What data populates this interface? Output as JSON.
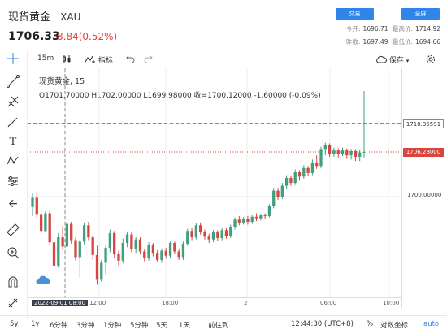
{
  "header": {
    "name": "现货黄金",
    "symbol": "XAU",
    "price": "1706.33",
    "change": "8.84(0.52%)",
    "btn_trade": "交易",
    "btn_fullscreen": "全屏",
    "stats": {
      "open_label": "今开:",
      "open": "1696.71",
      "high_label": "最高价:",
      "high": "1714.92",
      "prev_label": "昨收:",
      "prev": "1697.49",
      "low_label": "最低价:",
      "low": "1694.66"
    }
  },
  "toolbar": {
    "interval": "15m",
    "indicators": "指标",
    "save": "保存"
  },
  "legend": {
    "line1": "现货黄金, 15",
    "line2": "O1701.70000  H1702.00000  L1699.98000  收=1700.12000  -1.60000 (-0.09%)"
  },
  "price_axis": {
    "tag_top": "1710.35591",
    "tag_current": "1706.28000",
    "label_1700": "1700.00000"
  },
  "time_axis": {
    "date_tag": "2022-09-01  08:00",
    "t1": "12:00",
    "t2": "18:00",
    "t3": "2",
    "t4": "06:00",
    "t5": "10:00"
  },
  "bottom": {
    "ranges": [
      "5y",
      "1y",
      "6分钟",
      "3分钟",
      "1分钟",
      "5分钟",
      "5天",
      "1天"
    ],
    "goto": "前往到...",
    "clock": "12:44:30 (UTC+8)",
    "percent": "%",
    "log": "对数坐标",
    "auto": "auto"
  },
  "colors": {
    "up": "#3f9f7f",
    "down": "#d9453f",
    "accent": "#2f86e8"
  },
  "chart_data": {
    "type": "candlestick",
    "interval": "15m",
    "last_price": 1706.28,
    "crosshair_price": 1710.35591,
    "ytick": 1700.0,
    "candles": [
      [
        1698.5,
        1700.5,
        1697.2,
        1699.8
      ],
      [
        1699.8,
        1700.6,
        1697.0,
        1697.5
      ],
      [
        1697.5,
        1698.2,
        1694.8,
        1695.1
      ],
      [
        1695.1,
        1697.9,
        1694.9,
        1697.6
      ],
      [
        1697.6,
        1698.0,
        1693.0,
        1693.5
      ],
      [
        1693.5,
        1694.2,
        1689.5,
        1690.2
      ],
      [
        1690.2,
        1694.8,
        1689.9,
        1694.2
      ],
      [
        1694.2,
        1695.8,
        1692.4,
        1692.9
      ],
      [
        1692.9,
        1696.6,
        1692.5,
        1696.1
      ],
      [
        1696.1,
        1696.4,
        1693.3,
        1693.8
      ],
      [
        1693.8,
        1694.2,
        1690.9,
        1691.4
      ],
      [
        1691.4,
        1693.9,
        1688.5,
        1693.6
      ],
      [
        1693.6,
        1696.3,
        1693.2,
        1695.9
      ],
      [
        1695.9,
        1696.4,
        1693.8,
        1694.2
      ],
      [
        1694.2,
        1694.5,
        1691.0,
        1691.7
      ],
      [
        1691.7,
        1693.0,
        1687.5,
        1688.3
      ],
      [
        1688.3,
        1691.0,
        1687.9,
        1690.6
      ],
      [
        1690.6,
        1693.2,
        1689.0,
        1692.7
      ],
      [
        1692.7,
        1695.3,
        1692.1,
        1694.8
      ],
      [
        1694.8,
        1695.1,
        1691.3,
        1691.9
      ],
      [
        1691.9,
        1692.3,
        1690.2,
        1690.9
      ],
      [
        1690.9,
        1694.0,
        1690.5,
        1693.4
      ],
      [
        1693.4,
        1695.0,
        1692.8,
        1694.6
      ],
      [
        1694.6,
        1695.0,
        1692.1,
        1692.5
      ],
      [
        1692.5,
        1694.2,
        1692.0,
        1693.9
      ],
      [
        1693.9,
        1694.2,
        1691.8,
        1692.2
      ],
      [
        1692.2,
        1692.6,
        1690.8,
        1691.3
      ],
      [
        1691.3,
        1693.5,
        1690.9,
        1693.1
      ],
      [
        1693.1,
        1693.4,
        1691.5,
        1692.0
      ],
      [
        1692.0,
        1692.4,
        1690.7,
        1691.0
      ],
      [
        1691.0,
        1692.6,
        1690.6,
        1692.3
      ],
      [
        1692.3,
        1692.7,
        1691.2,
        1691.6
      ],
      [
        1691.6,
        1693.7,
        1691.2,
        1693.4
      ],
      [
        1693.4,
        1693.6,
        1691.9,
        1692.2
      ],
      [
        1692.2,
        1692.5,
        1691.0,
        1691.4
      ],
      [
        1691.4,
        1693.6,
        1691.0,
        1693.3
      ],
      [
        1693.3,
        1695.4,
        1693.0,
        1695.1
      ],
      [
        1695.1,
        1695.6,
        1693.8,
        1694.2
      ],
      [
        1694.2,
        1696.2,
        1693.9,
        1695.9
      ],
      [
        1695.9,
        1696.3,
        1694.6,
        1695.0
      ],
      [
        1695.0,
        1695.3,
        1693.9,
        1694.3
      ],
      [
        1694.3,
        1694.7,
        1693.4,
        1693.9
      ],
      [
        1693.9,
        1695.2,
        1693.5,
        1694.9
      ],
      [
        1694.9,
        1695.2,
        1693.7,
        1694.1
      ],
      [
        1694.1,
        1695.5,
        1693.8,
        1695.2
      ],
      [
        1695.2,
        1695.5,
        1694.0,
        1694.4
      ],
      [
        1694.4,
        1696.0,
        1694.1,
        1695.7
      ],
      [
        1695.7,
        1697.0,
        1695.3,
        1696.7
      ],
      [
        1696.7,
        1697.2,
        1695.9,
        1696.3
      ],
      [
        1696.3,
        1697.1,
        1696.0,
        1696.8
      ],
      [
        1696.8,
        1697.2,
        1696.0,
        1696.4
      ],
      [
        1696.4,
        1697.4,
        1696.1,
        1697.1
      ],
      [
        1697.1,
        1697.6,
        1696.5,
        1696.9
      ],
      [
        1696.9,
        1697.5,
        1696.6,
        1697.3
      ],
      [
        1697.3,
        1697.6,
        1696.8,
        1697.2
      ],
      [
        1697.2,
        1698.9,
        1697.0,
        1698.6
      ],
      [
        1698.6,
        1701.2,
        1698.3,
        1700.8
      ],
      [
        1700.8,
        1701.2,
        1699.5,
        1699.9
      ],
      [
        1699.9,
        1701.9,
        1699.6,
        1701.5
      ],
      [
        1701.5,
        1703.0,
        1701.1,
        1702.6
      ],
      [
        1702.6,
        1702.9,
        1701.5,
        1701.9
      ],
      [
        1701.9,
        1703.8,
        1701.6,
        1703.4
      ],
      [
        1703.4,
        1703.7,
        1702.2,
        1702.8
      ],
      [
        1702.8,
        1704.4,
        1702.5,
        1704.0
      ],
      [
        1704.0,
        1704.3,
        1702.9,
        1703.3
      ],
      [
        1703.3,
        1705.2,
        1703.0,
        1704.8
      ],
      [
        1704.8,
        1705.8,
        1703.9,
        1704.3
      ],
      [
        1704.3,
        1707.0,
        1704.0,
        1706.7
      ],
      [
        1706.7,
        1707.6,
        1705.8,
        1707.2
      ],
      [
        1707.2,
        1707.5,
        1705.6,
        1706.0
      ],
      [
        1706.0,
        1706.9,
        1705.6,
        1706.5
      ],
      [
        1706.5,
        1706.8,
        1705.5,
        1706.0
      ],
      [
        1706.0,
        1706.9,
        1705.7,
        1706.5
      ],
      [
        1706.5,
        1706.8,
        1705.3,
        1705.8
      ],
      [
        1705.8,
        1706.7,
        1705.2,
        1706.4
      ],
      [
        1706.4,
        1706.7,
        1705.0,
        1705.6
      ],
      [
        1705.6,
        1706.6,
        1705.0,
        1706.2
      ],
      [
        1706.2,
        1714.9,
        1705.5,
        1706.3
      ]
    ]
  }
}
